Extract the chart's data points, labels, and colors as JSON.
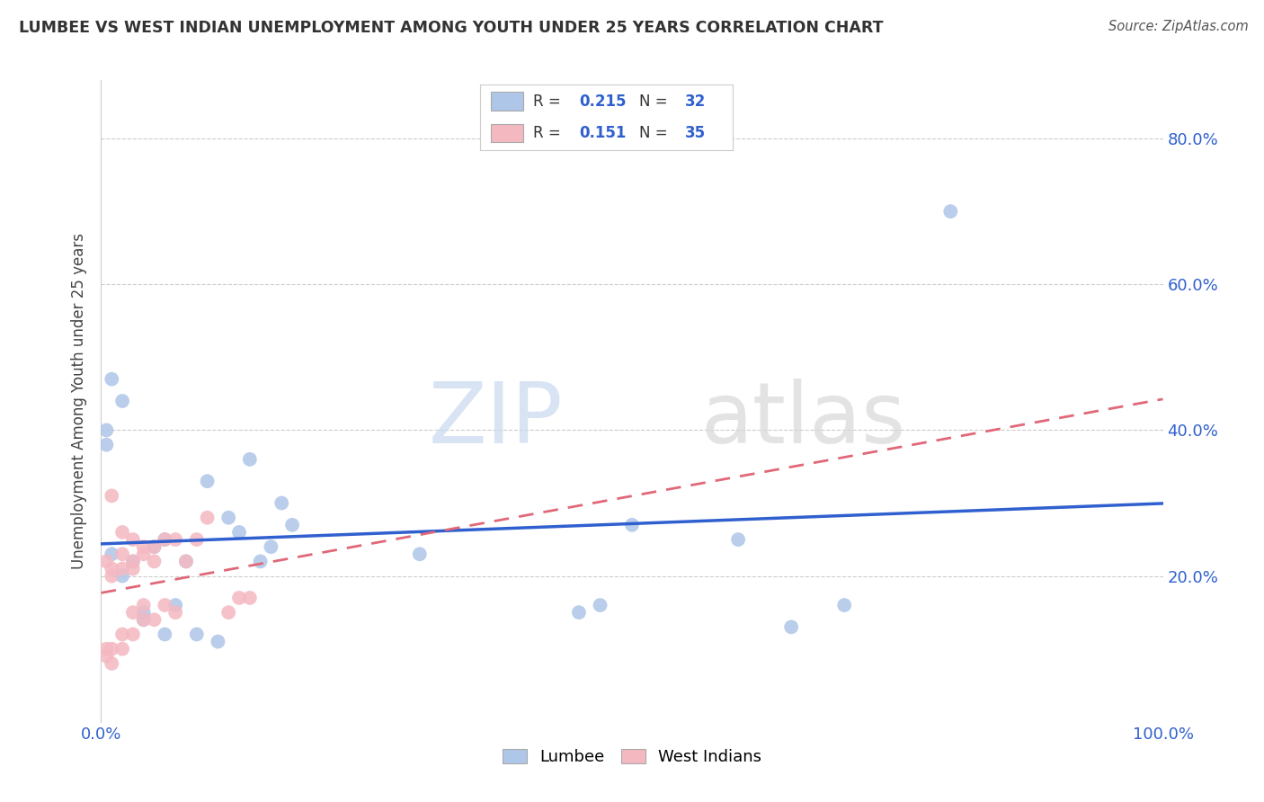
{
  "title": "LUMBEE VS WEST INDIAN UNEMPLOYMENT AMONG YOUTH UNDER 25 YEARS CORRELATION CHART",
  "source": "Source: ZipAtlas.com",
  "ylabel": "Unemployment Among Youth under 25 years",
  "xlim": [
    0.0,
    1.0
  ],
  "ylim": [
    0.0,
    0.88
  ],
  "yticks": [
    0.2,
    0.4,
    0.6,
    0.8
  ],
  "ytick_labels": [
    "20.0%",
    "40.0%",
    "60.0%",
    "80.0%"
  ],
  "lumbee_R": 0.215,
  "lumbee_N": 32,
  "westindian_R": 0.151,
  "westindian_N": 35,
  "lumbee_color": "#aec6e8",
  "westindian_color": "#f4b8c1",
  "lumbee_line_color": "#3060cf",
  "westindian_line_color": "#e06878",
  "lumbee_x": [
    0.02,
    0.01,
    0.005,
    0.005,
    0.01,
    0.02,
    0.03,
    0.04,
    0.05,
    0.06,
    0.07,
    0.08,
    0.09,
    0.1,
    0.11,
    0.12,
    0.13,
    0.14,
    0.15,
    0.16,
    0.17,
    0.18,
    0.3,
    0.45,
    0.47,
    0.5,
    0.6,
    0.65,
    0.7,
    0.8,
    0.06,
    0.04
  ],
  "lumbee_y": [
    0.44,
    0.47,
    0.4,
    0.38,
    0.23,
    0.2,
    0.22,
    0.14,
    0.24,
    0.25,
    0.16,
    0.22,
    0.12,
    0.33,
    0.11,
    0.28,
    0.26,
    0.36,
    0.22,
    0.24,
    0.3,
    0.27,
    0.23,
    0.15,
    0.16,
    0.27,
    0.25,
    0.13,
    0.16,
    0.7,
    0.12,
    0.15
  ],
  "westindian_x": [
    0.005,
    0.005,
    0.005,
    0.01,
    0.01,
    0.01,
    0.01,
    0.02,
    0.02,
    0.02,
    0.02,
    0.03,
    0.03,
    0.03,
    0.03,
    0.04,
    0.04,
    0.04,
    0.05,
    0.05,
    0.05,
    0.06,
    0.06,
    0.07,
    0.07,
    0.08,
    0.09,
    0.1,
    0.12,
    0.13,
    0.14,
    0.01,
    0.02,
    0.03,
    0.04
  ],
  "westindian_y": [
    0.09,
    0.1,
    0.22,
    0.08,
    0.1,
    0.2,
    0.31,
    0.1,
    0.12,
    0.21,
    0.23,
    0.12,
    0.15,
    0.21,
    0.25,
    0.14,
    0.16,
    0.23,
    0.14,
    0.22,
    0.24,
    0.16,
    0.25,
    0.15,
    0.25,
    0.22,
    0.25,
    0.28,
    0.15,
    0.17,
    0.17,
    0.21,
    0.26,
    0.22,
    0.24
  ],
  "watermark_zip": "ZIP",
  "watermark_atlas": "atlas",
  "background_color": "#ffffff",
  "grid_color": "#cccccc"
}
